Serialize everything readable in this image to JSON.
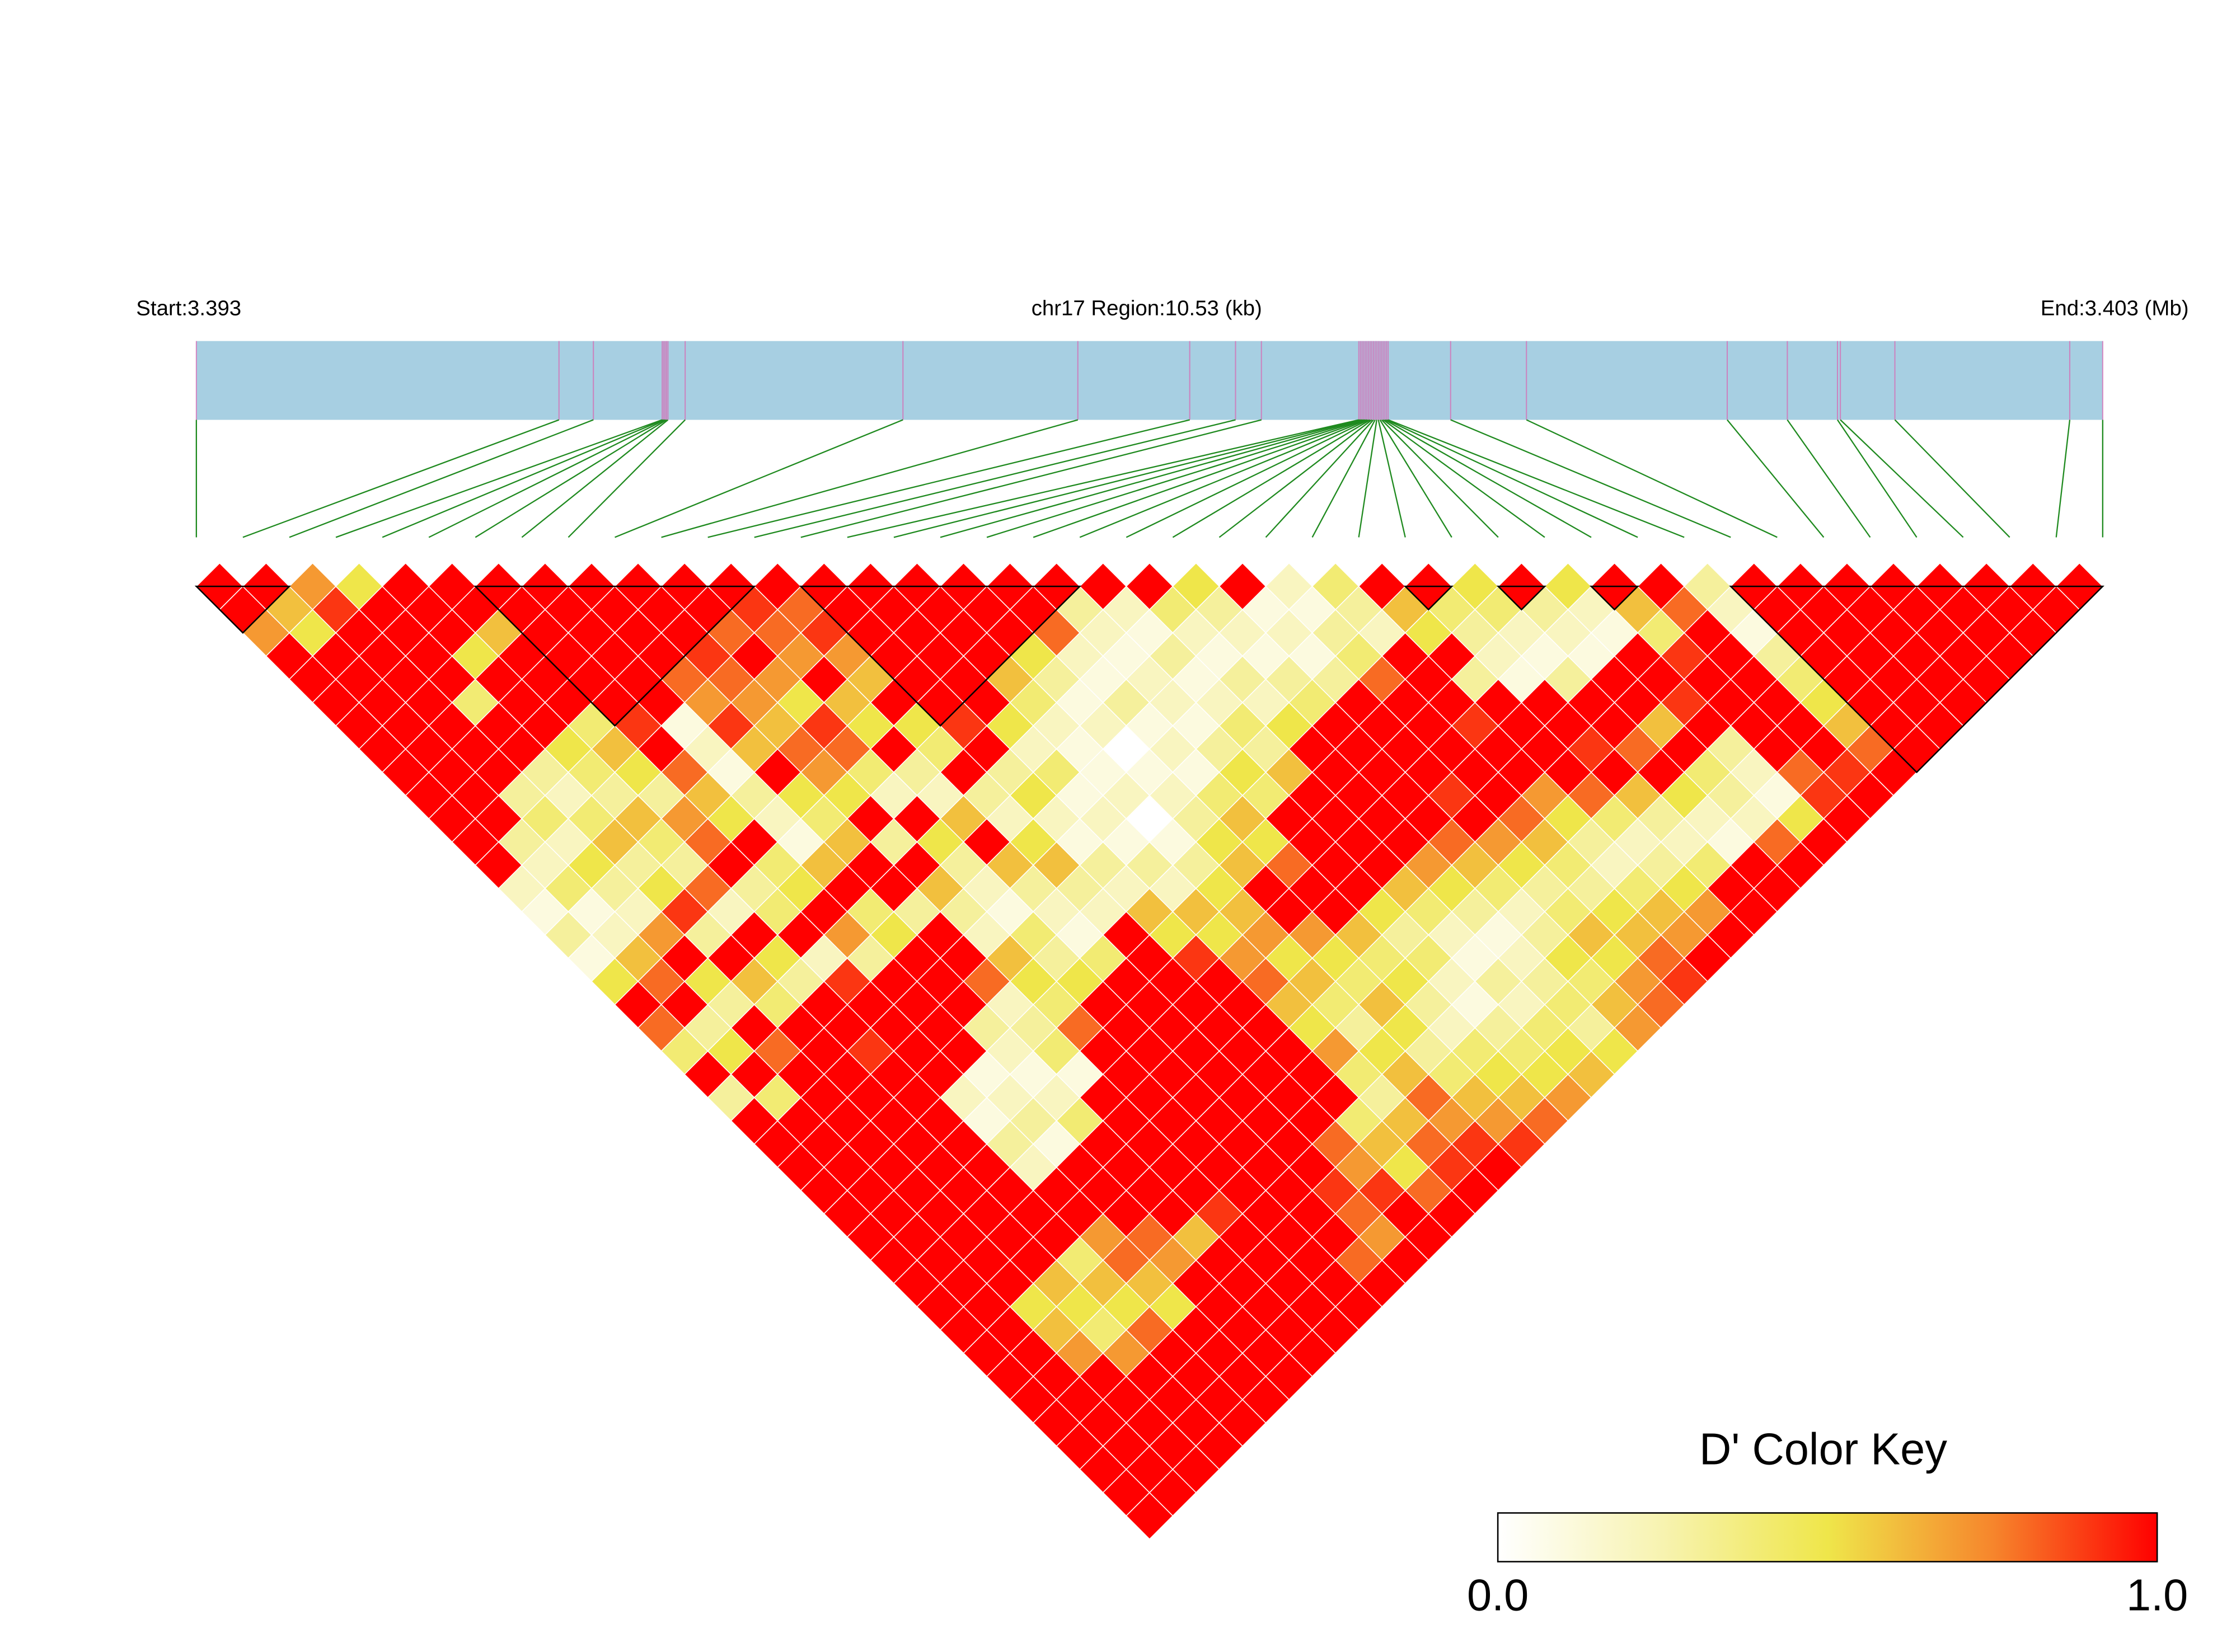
{
  "chart_data": {
    "type": "ld-heatmap",
    "start_label": "Start:3.393",
    "region_label": "chr17 Region:10.53 (kb)",
    "end_label": "End:3.403 (Mb)",
    "xlim": [
      0,
      10.53
    ],
    "snp_positions": [
      0,
      2.003,
      2.193,
      2.573,
      2.581,
      2.589,
      2.597,
      2.605,
      2.7,
      3.903,
      4.869,
      5.487,
      5.74,
      5.883,
      6.421,
      6.43,
      6.439,
      6.448,
      6.457,
      6.466,
      6.475,
      6.484,
      6.493,
      6.502,
      6.511,
      6.52,
      6.529,
      6.538,
      6.547,
      6.556,
      6.565,
      6.574,
      6.583,
      6.928,
      7.347,
      8.456,
      8.788,
      9.065,
      9.081,
      9.382,
      10.348,
      10.53
    ],
    "values": [
      [
        1,
        1,
        0.7,
        1,
        1,
        1,
        1,
        1,
        1,
        1,
        1,
        1,
        1,
        0.2,
        0.1,
        0.3,
        0.1,
        0.5,
        1,
        0.8,
        0.4,
        1,
        0.3,
        1,
        1,
        1,
        1,
        1,
        1,
        1,
        1,
        1,
        1,
        1,
        1,
        1,
        1,
        1,
        1,
        1,
        1
      ],
      [
        1,
        0.6,
        0.5,
        1,
        1,
        1,
        1,
        1,
        1,
        1,
        1,
        0.3,
        0.2,
        0.4,
        0.1,
        0.2,
        0.6,
        0.8,
        1,
        0.3,
        0.5,
        1,
        0.4,
        1,
        1,
        1,
        1,
        1,
        1,
        1,
        1,
        1,
        1,
        1,
        1,
        1,
        1,
        1,
        1,
        1
      ],
      [
        0.7,
        0.9,
        1,
        1,
        1,
        1,
        1,
        1,
        1,
        0.3,
        0.4,
        0.2,
        0.5,
        0.3,
        0.2,
        0.7,
        1,
        0.5,
        0.3,
        1,
        0.8,
        1,
        1,
        1,
        1,
        1,
        1,
        1,
        1,
        1,
        1,
        0.5,
        0.6,
        0.7,
        1,
        1,
        1,
        1,
        1
      ],
      [
        0.5,
        1,
        1,
        1,
        1,
        0.4,
        1,
        1,
        0.3,
        0.2,
        0.4,
        0.6,
        0.3,
        0.5,
        0.9,
        0.3,
        1,
        0.6,
        0.4,
        1,
        1,
        1,
        1,
        1,
        1,
        1,
        1,
        1,
        1,
        1,
        0.6,
        0.5,
        0.4,
        0.7,
        1,
        1,
        1,
        1
      ],
      [
        1,
        1,
        1,
        0.5,
        1,
        1,
        1,
        0.5,
        0.4,
        0.3,
        0.6,
        0.4,
        0.3,
        0.8,
        0.2,
        1,
        0.5,
        0.3,
        1,
        1,
        0.9,
        1,
        1,
        1,
        1,
        1,
        1,
        1,
        1,
        0.4,
        0.6,
        0.5,
        0.8,
        1,
        1,
        1,
        1
      ],
      [
        1,
        1,
        0.6,
        1,
        1,
        1,
        0.4,
        0.6,
        0.5,
        0.3,
        0.7,
        0.8,
        1,
        0.3,
        0.4,
        1,
        0.2,
        0.9,
        1,
        1,
        1,
        1,
        0.2,
        0.1,
        0.3,
        0.2,
        1,
        1,
        0.7,
        0.8,
        0.6,
        0.5,
        1,
        1,
        1,
        1
      ],
      [
        1,
        1,
        1,
        1,
        1,
        1,
        0.9,
        1,
        0.8,
        0.6,
        0.5,
        1,
        0.4,
        0.5,
        1,
        0.7,
        0.3,
        1,
        1,
        1,
        1,
        0.1,
        0.2,
        0.3,
        0.1,
        1,
        1,
        1,
        0.8,
        0.7,
        1,
        1,
        1,
        1,
        1
      ],
      [
        1,
        1,
        1,
        1,
        1,
        1,
        0.1,
        0.2,
        0.1,
        0.3,
        0.2,
        0.1,
        0.6,
        1,
        0.4,
        0.5,
        1,
        1,
        1,
        0.3,
        0.2,
        0.1,
        0.2,
        0.4,
        1,
        1,
        1,
        1,
        0.6,
        1,
        1,
        1,
        1,
        1
      ],
      [
        1,
        1,
        1,
        1,
        0.8,
        0.7,
        0.9,
        0.6,
        1,
        0.5,
        0.4,
        0.6,
        1,
        1,
        0.3,
        1,
        1,
        0.8,
        0.2,
        0.3,
        0.4,
        0.1,
        1,
        1,
        1,
        1,
        1,
        0.9,
        1,
        1,
        1,
        1,
        1
      ],
      [
        1,
        1,
        1,
        0.9,
        0.8,
        0.7,
        0.6,
        0.8,
        0.7,
        0.5,
        1,
        0.3,
        1,
        0.6,
        0.3,
        0.2,
        0.6,
        0.5,
        0.4,
        0.8,
        1,
        1,
        1,
        1,
        1,
        1,
        1,
        1,
        1,
        1,
        1,
        1
      ],
      [
        1,
        1,
        0.8,
        1,
        0.7,
        0.5,
        0.9,
        0.8,
        0.4,
        0.2,
        1,
        0.5,
        0.3,
        0.2,
        0.1,
        0.4,
        0.3,
        0.5,
        1,
        1,
        1,
        1,
        1,
        1,
        1,
        1,
        1,
        1,
        1,
        0.8,
        1
      ],
      [
        1,
        0.9,
        0.8,
        0.7,
        1,
        0.6,
        0.5,
        1,
        0.3,
        0.2,
        0.6,
        1,
        0.6,
        0.3,
        0.2,
        0.1,
        0.4,
        1,
        1,
        1,
        1,
        1,
        1,
        1,
        1,
        1,
        0.9,
        0.8,
        0.7,
        1
      ],
      [
        1,
        0.8,
        0.9,
        0.7,
        0.6,
        1,
        0.5,
        0.4,
        1,
        0.3,
        0.2,
        0.5,
        0.6,
        0.3,
        0.2,
        1,
        1,
        1,
        1,
        1,
        1,
        1,
        1,
        1,
        0.8,
        0.7,
        0.9,
        1,
        1
      ],
      [
        1,
        1,
        1,
        1,
        1,
        1,
        0.9,
        1,
        0.3,
        0.5,
        0.2,
        0.1,
        0.3,
        0.2,
        0.6,
        0.5,
        0.9,
        1,
        1,
        1,
        1,
        1,
        1,
        0.4,
        0.6,
        0.5,
        0.8,
        1
      ],
      [
        1,
        1,
        1,
        1,
        1,
        1,
        0.5,
        0.2,
        0.4,
        0.1,
        0.2,
        0.1,
        0.3,
        0.2,
        0.6,
        0.5,
        0.7,
        0.8,
        0.6,
        0.5,
        0.7,
        0.4,
        0.3,
        0.6,
        0.8,
        0.9,
        1
      ],
      [
        1,
        1,
        1,
        1,
        0.6,
        0.4,
        0.2,
        0.1,
        0.1,
        0.2,
        0,
        0.1,
        0.3,
        0.5,
        0.6,
        0.7,
        0.5,
        0.6,
        0.4,
        0.3,
        0.5,
        0.6,
        0.8,
        0.7,
        0.9,
        1
      ],
      [
        1,
        1,
        1,
        0.5,
        0.3,
        0.1,
        0.2,
        0,
        0.1,
        0.2,
        0.3,
        0.5,
        0.6,
        1,
        1,
        0.7,
        0.5,
        0.4,
        0.6,
        0.5,
        0.3,
        0.4,
        0.6,
        0.7,
        0.9
      ],
      [
        1,
        1,
        0.8,
        0.2,
        0.1,
        0.3,
        0.1,
        0.2,
        0.1,
        0.4,
        0.6,
        0.5,
        0.8,
        1,
        1,
        0.6,
        0.4,
        0.5,
        0.3,
        0.2,
        0.4,
        0.5,
        0.6,
        0.8
      ],
      [
        1,
        0.3,
        0.2,
        0.1,
        0.2,
        0.2,
        0.1,
        0.3,
        0.5,
        0.4,
        1,
        1,
        1,
        1,
        0.5,
        0.3,
        0.4,
        0.2,
        0.1,
        0.3,
        0.4,
        0.5,
        0.7
      ],
      [
        1,
        0.2,
        0.1,
        0.3,
        0.1,
        0.2,
        0.4,
        0.3,
        0.6,
        1,
        1,
        1,
        1,
        0.6,
        0.4,
        0.2,
        0.1,
        0.3,
        0.2,
        0.4,
        0.5,
        0.6
      ],
      [
        1,
        0.4,
        0.2,
        0.1,
        0.3,
        0.2,
        0.5,
        1,
        1,
        1,
        1,
        1,
        0.7,
        0.5,
        0.3,
        0.1,
        0.2,
        0.3,
        0.4,
        0.3,
        0.5
      ],
      [
        0.5,
        0.3,
        0.2,
        0.1,
        0.3,
        0.4,
        1,
        1,
        1,
        1,
        1,
        0.8,
        0.6,
        0.4,
        0.2,
        0.3,
        0.5,
        0.4,
        0.6,
        0.7
      ],
      [
        1,
        0.1,
        0.2,
        0.1,
        0.3,
        1,
        1,
        1,
        1,
        0.9,
        1,
        0.7,
        0.5,
        0.3,
        0.4,
        0.6,
        0.5,
        0.7,
        0.8
      ],
      [
        0.2,
        0.1,
        0.3,
        0.4,
        0.8,
        1,
        1,
        1,
        1,
        1,
        0.8,
        0.6,
        0.4,
        0.3,
        0.5,
        0.6,
        0.8,
        0.9
      ],
      [
        0.4,
        0.3,
        0.2,
        1,
        1,
        1,
        0.9,
        1,
        1,
        0.7,
        0.5,
        0.3,
        0.2,
        0.4,
        0.6,
        0.7,
        1
      ],
      [
        1,
        0.6,
        0.5,
        1,
        0.3,
        1,
        1,
        1,
        1,
        0.8,
        0.4,
        0.2,
        0.3,
        0.5,
        0.7,
        1
      ],
      [
        1,
        0.4,
        0.3,
        0.2,
        0.1,
        1,
        1,
        0.9,
        1,
        0.6,
        0.3,
        0.2,
        0.4,
        1,
        1
      ],
      [
        0.5,
        0.4,
        0.2,
        0.1,
        0.3,
        1,
        1,
        0.8,
        1,
        0.5,
        0.2,
        0.1,
        1,
        1
      ],
      [
        1,
        0.3,
        0.2,
        0.1,
        1,
        1,
        0.6,
        1,
        0.4,
        0.3,
        0.2,
        0.8,
        1
      ],
      [
        0.5,
        0.2,
        0.1,
        1,
        1,
        0.9,
        1,
        0.3,
        0.2,
        0.1,
        0.5,
        1
      ],
      [
        1,
        0.6,
        0.4,
        0.9,
        1,
        1,
        1,
        1,
        0.8,
        0.9,
        1
      ],
      [
        1,
        0.8,
        1,
        1,
        1,
        1,
        1,
        1,
        0.9,
        1
      ],
      [
        0.3,
        0.2,
        0.1,
        0.3,
        0.4,
        0.5,
        0.6,
        0.8,
        1
      ],
      [
        1,
        1,
        1,
        1,
        1,
        1,
        1,
        1
      ],
      [
        1,
        1,
        1,
        1,
        1,
        1,
        1
      ],
      [
        1,
        1,
        1,
        1,
        1,
        1
      ],
      [
        1,
        1,
        1,
        1,
        1
      ],
      [
        1,
        1,
        1,
        1
      ],
      [
        1,
        1,
        1
      ],
      [
        1,
        1
      ],
      [
        1
      ]
    ],
    "blocks": [
      [
        0,
        2
      ],
      [
        6,
        12
      ],
      [
        13,
        19
      ],
      [
        26,
        27
      ],
      [
        28,
        29
      ],
      [
        30,
        31
      ],
      [
        33,
        41
      ]
    ],
    "colorscale": [
      "#ffffff",
      "#f7f3b0",
      "#efe64a",
      "#f6862c",
      "#ff0000"
    ],
    "colorbar": {
      "title": "D' Color Key",
      "clim": [
        0,
        1
      ],
      "ticks": [
        {
          "value": 0,
          "label": "0.0"
        },
        {
          "value": 1,
          "label": "1.0"
        }
      ]
    }
  }
}
